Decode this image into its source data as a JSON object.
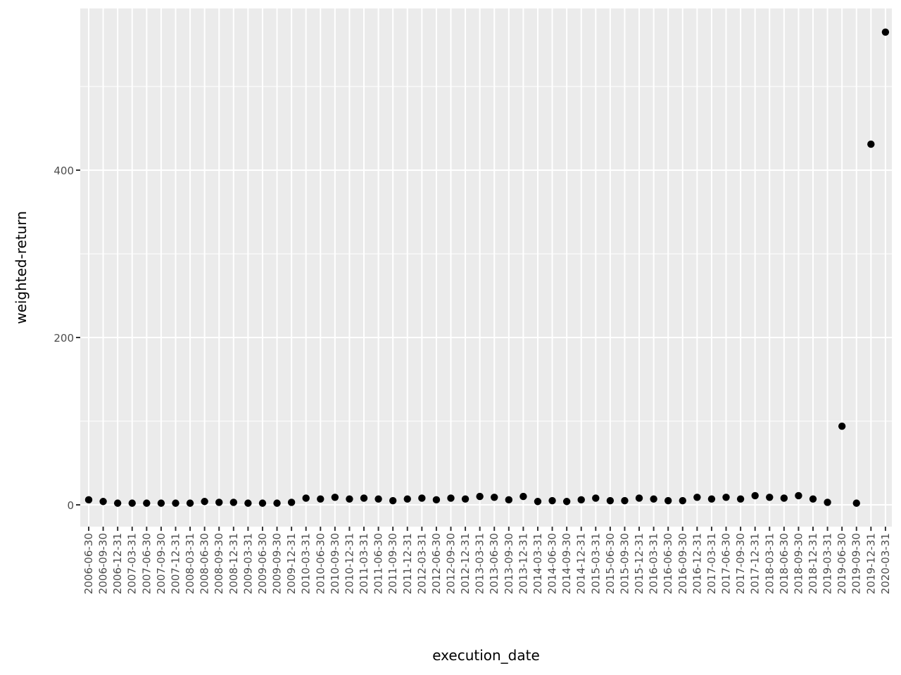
{
  "chart_data": {
    "type": "scatter",
    "xlabel": "execution_date",
    "ylabel": "weighted-return",
    "x": [
      "2006-06-30",
      "2006-09-30",
      "2006-12-31",
      "2007-03-31",
      "2007-06-30",
      "2007-09-30",
      "2007-12-31",
      "2008-03-31",
      "2008-06-30",
      "2008-09-30",
      "2008-12-31",
      "2009-03-31",
      "2009-06-30",
      "2009-09-30",
      "2009-12-31",
      "2010-03-31",
      "2010-06-30",
      "2010-09-30",
      "2010-12-31",
      "2011-03-31",
      "2011-06-30",
      "2011-09-30",
      "2011-12-31",
      "2012-03-31",
      "2012-06-30",
      "2012-09-30",
      "2012-12-31",
      "2013-03-31",
      "2013-06-30",
      "2013-09-30",
      "2013-12-31",
      "2014-03-31",
      "2014-06-30",
      "2014-09-30",
      "2014-12-31",
      "2015-03-31",
      "2015-06-30",
      "2015-09-30",
      "2015-12-31",
      "2016-03-31",
      "2016-06-30",
      "2016-09-30",
      "2016-12-31",
      "2017-03-31",
      "2017-06-30",
      "2017-09-30",
      "2017-12-31",
      "2018-03-31",
      "2018-06-30",
      "2018-09-30",
      "2018-12-31",
      "2019-03-31",
      "2019-06-30",
      "2019-09-30",
      "2019-12-31",
      "2020-03-31"
    ],
    "x_tick_labels": [
      "2006-06-30",
      "2006-09-30",
      "2006-12-31",
      "2007-03-31",
      "2007-06-30",
      "2007-09-30",
      "2007-12-31",
      "2008-03-31",
      "2008-06-30",
      "2008-09-30",
      "2008-12-31",
      "2009-03-31",
      "2009-06-30",
      "2009-09-30",
      "2009-12-31",
      "2010-03-31",
      "2010-06-30",
      "2010-09-30",
      "2010-12-31",
      "2011-03-31",
      "2011-06-30",
      "2011-09-30",
      "2011-12-31",
      "2012-03-31",
      "2012-06-30",
      "2012-09-30",
      "2012-12-31",
      "2013-03-31",
      "2013-06-30",
      "2013-09-30",
      "2013-12-31",
      "2014-03-31",
      "2014-06-30",
      "2014-09-30",
      "2014-12-31",
      "2015-03-31",
      "2015-06-30",
      "2015-09-30",
      "2015-12-31",
      "2016-03-31",
      "2016-06-30",
      "2016-09-30",
      "2016-12-31",
      "2017-03-31",
      "2017-06-30",
      "2017-09-30",
      "2017-12-31",
      "2018-03-31",
      "2018-06-30",
      "2018-09-30",
      "2018-12-31",
      "2019-03-31",
      "2019-06-30",
      "2019-09-30",
      "2019-12-31",
      "2020-03-31"
    ],
    "values": [
      6,
      4,
      2,
      2,
      2,
      2,
      2,
      2,
      4,
      3,
      3,
      2,
      2,
      2,
      3,
      8,
      7,
      9,
      7,
      8,
      7,
      5,
      7,
      8,
      6,
      8,
      7,
      10,
      9,
      6,
      10,
      4,
      5,
      4,
      6,
      8,
      5,
      5,
      8,
      7,
      5,
      5,
      9,
      7,
      9,
      7,
      11,
      9,
      8,
      11,
      7,
      3,
      94,
      2,
      431,
      565
    ],
    "y_ticks": [
      0,
      200,
      400
    ],
    "y_tick_labels": [
      "0",
      "200",
      "400"
    ],
    "ylim": [
      -24,
      593
    ],
    "grid": true,
    "legend": "none",
    "colors": {
      "panel": "#ebebeb",
      "grid": "#ffffff",
      "point": "#000000",
      "tick_text": "#4d4d4d",
      "tick_mark": "#333333"
    }
  }
}
